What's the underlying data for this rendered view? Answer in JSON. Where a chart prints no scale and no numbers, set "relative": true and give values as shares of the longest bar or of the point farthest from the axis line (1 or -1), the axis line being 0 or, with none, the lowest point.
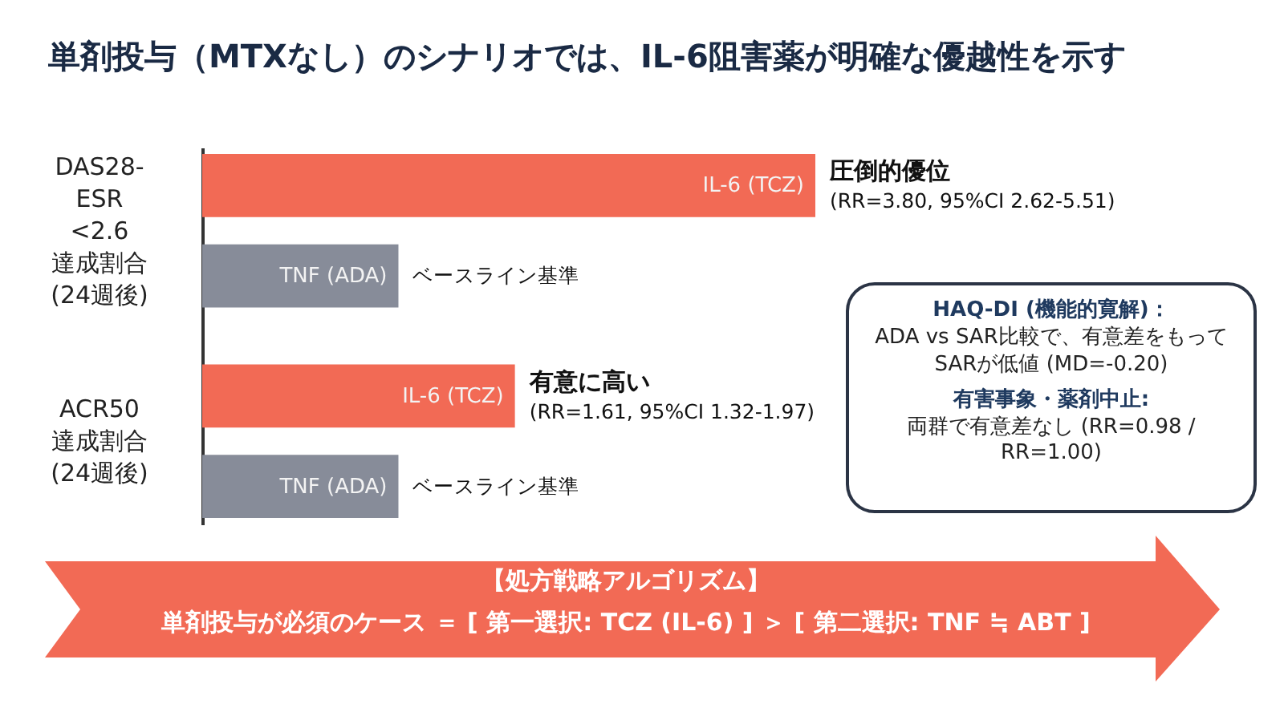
{
  "chart_data": {
    "type": "bar",
    "orientation": "horizontal",
    "relative": true,
    "title": "単剤投与（MTXなし）のシナリオでは、IL-6阻害薬が明確な優越性を示す",
    "categories": [
      "DAS28-ESR <2.6 達成割合 (24週後)",
      "ACR50 達成割合 (24週後)"
    ],
    "series": [
      {
        "name": "IL-6 (TCZ)",
        "color": "#f26a55",
        "values": [
          1,
          0.51
        ]
      },
      {
        "name": "TNF (ADA)",
        "color": "#878c99",
        "values": [
          0.32,
          0.32
        ]
      }
    ],
    "legend": false,
    "annotations": [
      "圧倒的優位",
      "(RR=3.80, 95%CI 2.62-5.51)",
      "ベースライン基準",
      "有意に高い",
      "(RR=1.61, 95%CI 1.32-1.97)",
      "ベースライン基準",
      "HAQ-DI (機能的寛解)：",
      "ADA vs SAR比較で、有意差をもってSARが低値 (MD=-0.20)",
      "有害事象・薬剤中止:",
      "両群で有意差なし (RR=0.98 / RR=1.00)",
      "【処方戦略アルゴリズム】",
      "単剤投与が必須のケース ＝ [ 第一選択: TCZ (IL-6) ] ＞ [ 第二選択: TNF ≒ ABT ]"
    ]
  }
}
